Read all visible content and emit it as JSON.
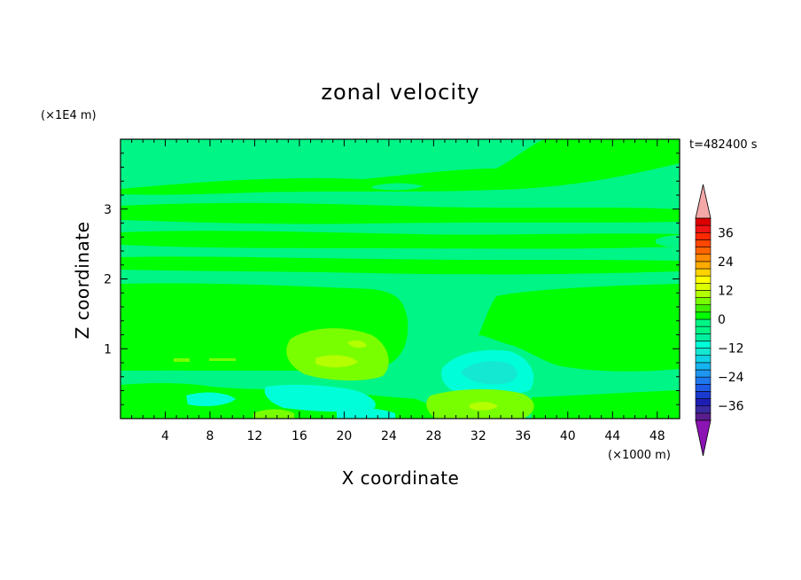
{
  "chart_data": {
    "type": "heatmap",
    "title": "zonal velocity",
    "xlabel": "X coordinate",
    "ylabel": "Z coordinate",
    "x_unit": "(×1000 m)",
    "y_unit": "(×1E4 m)",
    "time_label": "t=482400 s",
    "x_ticks": [
      4,
      8,
      12,
      16,
      20,
      24,
      28,
      32,
      36,
      40,
      44,
      48
    ],
    "y_ticks": [
      1,
      2,
      3
    ],
    "xlim": [
      0,
      50
    ],
    "ylim": [
      0,
      4
    ],
    "colorbar": {
      "levels": [
        -42,
        -39,
        -36,
        -33,
        -30,
        -27,
        -24,
        -21,
        -18,
        -15,
        -12,
        -9,
        -6,
        -3,
        0,
        3,
        6,
        9,
        12,
        15,
        18,
        21,
        24,
        27,
        30,
        33,
        36,
        39,
        42
      ],
      "colors": [
        "#5a1e8c",
        "#3a2aa0",
        "#1e1eb4",
        "#1a3ad0",
        "#1e5ae6",
        "#1e78ee",
        "#1e96f0",
        "#14b4f0",
        "#10d2e6",
        "#14e8d2",
        "#00ffd8",
        "#00f0a0",
        "#00f587",
        "#00f587",
        "#00ff00",
        "#3cf000",
        "#78ff00",
        "#b4ff00",
        "#dcff00",
        "#ffff00",
        "#ffd200",
        "#ffaa00",
        "#ff8c00",
        "#ff6400",
        "#ff4600",
        "#ff2800",
        "#f01414",
        "#dc0000"
      ],
      "over_color": "#f4a8a8",
      "under_color": "#8c14b4",
      "tick_labels": [
        "36",
        "24",
        "12",
        "0",
        "-12",
        "-24",
        "-36"
      ],
      "tick_values": [
        36,
        24,
        12,
        0,
        -12,
        -24,
        -36
      ]
    },
    "features": [
      {
        "kind": "blob",
        "x": 20,
        "z": 0.85,
        "rx": 4.5,
        "rz": 0.45,
        "value": 5
      },
      {
        "kind": "blob",
        "x": 20.5,
        "z": 0.82,
        "rx": 1.8,
        "rz": 0.12,
        "value": 10
      },
      {
        "kind": "blob",
        "x": 33,
        "z": 0.65,
        "rx": 3.5,
        "rz": 0.4,
        "value": -8
      },
      {
        "kind": "blob",
        "x": 32,
        "z": 0.2,
        "rx": 4,
        "rz": 0.2,
        "value": 5
      }
    ]
  }
}
